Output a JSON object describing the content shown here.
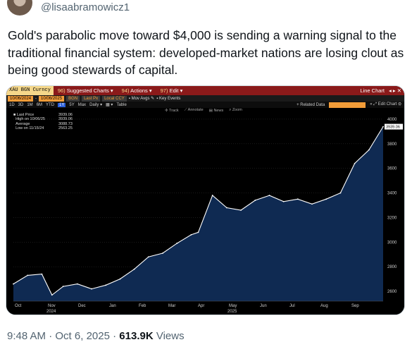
{
  "post": {
    "handle": "@lisaabramowicz1",
    "text": "Gold's parabolic move toward $4,000 is sending a warning signal to the traditional financial system: developed-market nations are losing clout as being good stewards of capital.",
    "time": "9:48 AM",
    "date": "Oct 6, 2025",
    "views_count": "613.9K",
    "views_label": "Views"
  },
  "terminal": {
    "ticker": "XAU BGN Curncy",
    "menu": [
      {
        "num": "96)",
        "label": "Suggested Charts"
      },
      {
        "num": "94)",
        "label": "Actions"
      },
      {
        "num": "97)",
        "label": "Edit"
      }
    ],
    "chart_title": "Line Chart",
    "row2": {
      "start_date": "10/06/2024",
      "end_date": "10/06/2025",
      "source": "BGN",
      "field": "Last Px",
      "ccy": "Local CCY",
      "mov_avgs": "Mov Avgs",
      "key_events": "Key Events"
    },
    "periods": [
      "1D",
      "3D",
      "1M",
      "6M",
      "YTD",
      "1Y",
      "5Y",
      "Max"
    ],
    "selected_period": "1Y",
    "freq": "Daily",
    "table": "Table",
    "related": "+ Related Data",
    "edit_chart": "Edit Chart",
    "tools": [
      "Track",
      "Annotate",
      "News",
      "Zoom"
    ],
    "stats": [
      {
        "label": "Last Price",
        "value": "3939.06"
      },
      {
        "label": "High on 10/06/25",
        "value": "3939.06"
      },
      {
        "label": "Average",
        "value": "3088.73"
      },
      {
        "label": "Low on 11/15/24",
        "value": "2563.25"
      }
    ],
    "last_tag": "3939.06"
  },
  "chart_data": {
    "type": "area",
    "title": "",
    "x": [
      "2024-10-07",
      "2024-10-21",
      "2024-11-04",
      "2024-11-14",
      "2024-11-25",
      "2024-12-09",
      "2024-12-23",
      "2025-01-06",
      "2025-01-20",
      "2025-02-03",
      "2025-02-17",
      "2025-03-03",
      "2025-03-17",
      "2025-03-31",
      "2025-04-07",
      "2025-04-21",
      "2025-05-05",
      "2025-05-19",
      "2025-06-02",
      "2025-06-16",
      "2025-06-30",
      "2025-07-14",
      "2025-07-28",
      "2025-08-11",
      "2025-08-25",
      "2025-09-08",
      "2025-09-22",
      "2025-10-06"
    ],
    "values": [
      2660,
      2730,
      2740,
      2570,
      2640,
      2660,
      2620,
      2650,
      2700,
      2780,
      2880,
      2910,
      2990,
      3060,
      3080,
      3380,
      3280,
      3260,
      3340,
      3380,
      3330,
      3350,
      3310,
      3350,
      3400,
      3640,
      3750,
      3939.06
    ],
    "y_ticks": [
      2600,
      2800,
      3000,
      3200,
      3400,
      3600,
      3800,
      4000
    ],
    "ylim": [
      2520,
      4040
    ],
    "x_tick_labels": [
      "Oct",
      "Nov",
      "Dec",
      "Jan",
      "Feb",
      "Mar",
      "Apr",
      "May",
      "Jun",
      "Jul",
      "Aug",
      "Sep"
    ],
    "year_labels": [
      {
        "under": "Nov",
        "text": "2024"
      },
      {
        "under": "May",
        "text": "2025"
      }
    ],
    "line_color": "#ffffff",
    "fill_color": "#0f2a52",
    "grid": true
  }
}
